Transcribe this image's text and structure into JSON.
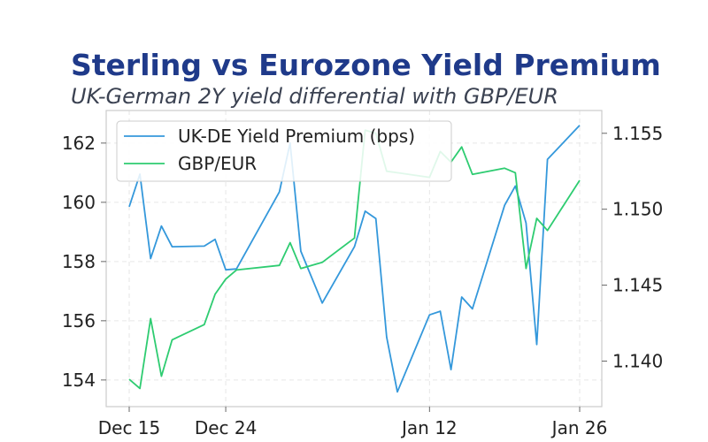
{
  "chart_data": {
    "type": "line",
    "title": "Sterling vs Eurozone Yield Premium",
    "subtitle": "UK-German 2Y yield differential with GBP/EUR",
    "xlabel": "",
    "ylabel": "",
    "x_ticks": [
      "Dec 15",
      "Dec 24",
      "Jan 12",
      "Jan 26"
    ],
    "y_left_ticks": [
      154,
      156,
      158,
      160,
      162
    ],
    "y_right_ticks": [
      "1.140",
      "1.145",
      "1.150",
      "1.155"
    ],
    "ylim_left": [
      153.1,
      163.1
    ],
    "ylim_right": [
      1.137,
      1.1565
    ],
    "grid": true,
    "legend_position": "upper-left",
    "series": [
      {
        "name": "UK-DE Yield Premium (bps)",
        "axis": "left",
        "color": "#3498db",
        "x": [
          "2025-12-15",
          "2025-12-16",
          "2025-12-17",
          "2025-12-18",
          "2025-12-19",
          "2025-12-22",
          "2025-12-23",
          "2025-12-24",
          "2025-12-25",
          "2025-12-29",
          "2025-12-30",
          "2025-12-31",
          "2026-01-02",
          "2026-01-05",
          "2026-01-06",
          "2026-01-07",
          "2026-01-08",
          "2026-01-09",
          "2026-01-12",
          "2026-01-13",
          "2026-01-14",
          "2026-01-15",
          "2026-01-16",
          "2026-01-19",
          "2026-01-20",
          "2026-01-21",
          "2026-01-22",
          "2026-01-23",
          "2026-01-26"
        ],
        "values": [
          159.85,
          160.95,
          158.1,
          159.2,
          158.5,
          158.52,
          158.75,
          157.72,
          157.75,
          160.35,
          162.0,
          158.35,
          156.6,
          158.5,
          159.7,
          159.45,
          155.45,
          153.6,
          156.2,
          156.32,
          154.35,
          156.8,
          156.4,
          159.9,
          160.55,
          159.3,
          155.2,
          161.45,
          162.6
        ]
      },
      {
        "name": "GBP/EUR",
        "axis": "right",
        "color": "#2ecc71",
        "x": [
          "2025-12-15",
          "2025-12-16",
          "2025-12-17",
          "2025-12-18",
          "2025-12-19",
          "2025-12-22",
          "2025-12-23",
          "2025-12-24",
          "2025-12-25",
          "2025-12-29",
          "2025-12-30",
          "2025-12-31",
          "2026-01-02",
          "2026-01-05",
          "2026-01-06",
          "2026-01-07",
          "2026-01-08",
          "2026-01-09",
          "2026-01-12",
          "2026-01-13",
          "2026-01-14",
          "2026-01-15",
          "2026-01-16",
          "2026-01-19",
          "2026-01-20",
          "2026-01-21",
          "2026-01-22",
          "2026-01-23",
          "2026-01-26"
        ],
        "values": [
          1.1388,
          1.1382,
          1.1428,
          1.139,
          1.1414,
          1.1424,
          1.1444,
          1.1454,
          1.146,
          1.1463,
          1.1478,
          1.1461,
          1.1465,
          1.1481,
          1.1552,
          1.155,
          1.1525,
          1.1524,
          1.1521,
          1.1538,
          1.1531,
          1.1541,
          1.1523,
          1.1527,
          1.1524,
          1.1461,
          1.1494,
          1.1486,
          1.1519
        ]
      }
    ]
  }
}
